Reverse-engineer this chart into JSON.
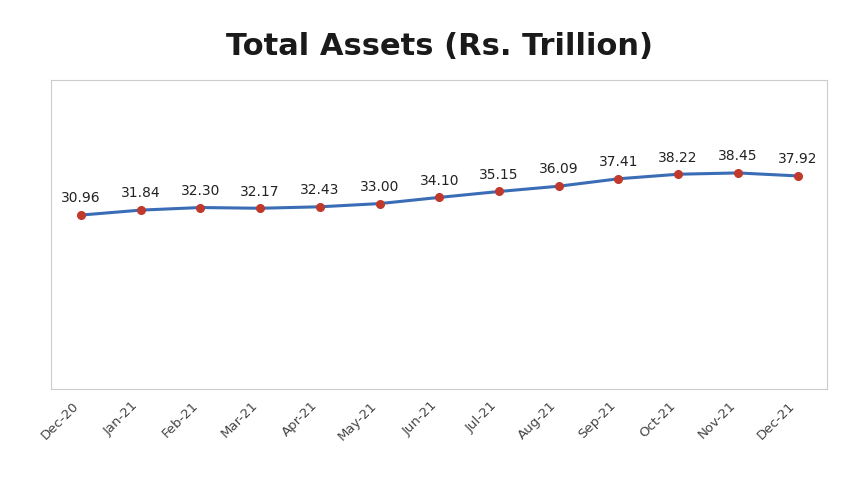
{
  "title": "Total Assets (Rs. Trillion)",
  "categories": [
    "Dec-20",
    "Jan-21",
    "Feb-21",
    "Mar-21",
    "Apr-21",
    "May-21",
    "Jun-21",
    "Jul-21",
    "Aug-21",
    "Sep-21",
    "Oct-21",
    "Nov-21",
    "Dec-21"
  ],
  "values": [
    30.96,
    31.84,
    32.3,
    32.17,
    32.43,
    33.0,
    34.1,
    35.15,
    36.09,
    37.41,
    38.22,
    38.45,
    37.92
  ],
  "line_color": "#3A6DB5",
  "marker_color": "#C0392B",
  "background_color": "#FFFFFF",
  "plot_bg_color": "#FFFFFF",
  "box_color": "#CCCCCC",
  "title_fontsize": 22,
  "label_fontsize": 9.5,
  "annotation_fontsize": 10,
  "line_width": 2.2,
  "marker_size": 5.5,
  "ylim_min": 0,
  "ylim_max": 55,
  "annotation_color": "#222222"
}
